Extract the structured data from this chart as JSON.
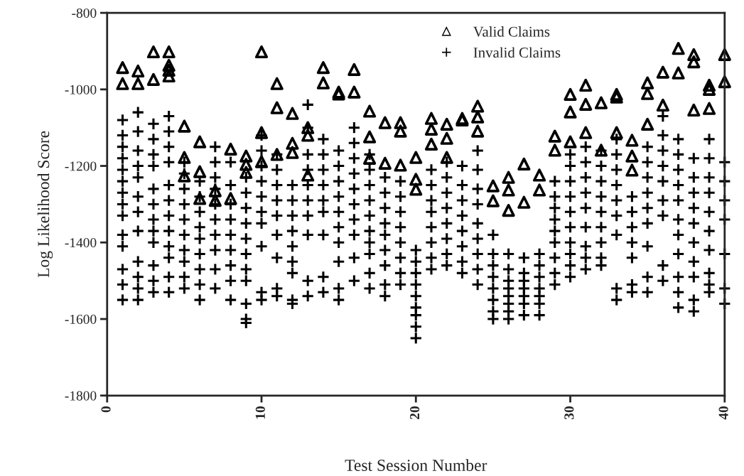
{
  "chart_data": {
    "type": "scatter",
    "xlabel": "Test Session Number",
    "ylabel": "Log Likelihood Score",
    "xlim": [
      0,
      40
    ],
    "xticks": [
      0,
      10,
      20,
      30,
      40
    ],
    "ylim": [
      -1800,
      -800
    ],
    "yticks": [
      -1800,
      -1600,
      -1400,
      -1200,
      -1000,
      -800
    ],
    "legend": "top",
    "grid": false,
    "series": [
      {
        "name": "Valid Claims",
        "color": "#000000",
        "marker": "triangle",
        "x": [
          1,
          1,
          2,
          2,
          3,
          3,
          4,
          4,
          4,
          4,
          5,
          5,
          5,
          6,
          6,
          6,
          7,
          7,
          8,
          8,
          9,
          9,
          9,
          10,
          10,
          10,
          11,
          11,
          11,
          12,
          12,
          12,
          13,
          13,
          13,
          14,
          14,
          15,
          15,
          16,
          16,
          17,
          17,
          17,
          18,
          18,
          19,
          19,
          19,
          20,
          20,
          20,
          21,
          21,
          21,
          22,
          22,
          22,
          23,
          23,
          24,
          24,
          24,
          25,
          25,
          26,
          26,
          26,
          27,
          27,
          28,
          28,
          29,
          29,
          30,
          30,
          30,
          31,
          31,
          31,
          32,
          32,
          33,
          33,
          33,
          34,
          34,
          34,
          35,
          35,
          35,
          36,
          36,
          37,
          37,
          38,
          38,
          38,
          39,
          39,
          39,
          40,
          40
        ],
        "values": [
          -943,
          -985,
          -952,
          -985,
          -902,
          -974,
          -902,
          -937,
          -950,
          -965,
          -1096,
          -1178,
          -1226,
          -1137,
          -1215,
          -1285,
          -1265,
          -1290,
          -1156,
          -1285,
          -1174,
          -1196,
          -1217,
          -902,
          -1113,
          -1189,
          -985,
          -1048,
          -1170,
          -1063,
          -1141,
          -1165,
          -1100,
          -1120,
          -1224,
          -943,
          -983,
          -1007,
          -1012,
          -948,
          -1007,
          -1057,
          -1124,
          -1180,
          -1087,
          -1193,
          -1087,
          -1109,
          -1198,
          -1178,
          -1235,
          -1261,
          -1076,
          -1104,
          -1143,
          -1091,
          -1128,
          -1178,
          -1076,
          -1080,
          -1044,
          -1072,
          -1109,
          -1252,
          -1291,
          -1230,
          -1263,
          -1316,
          -1195,
          -1295,
          -1224,
          -1263,
          -1122,
          -1159,
          -1013,
          -1059,
          -1137,
          -989,
          -1039,
          -1113,
          -1035,
          -1159,
          -1013,
          -1020,
          -1113,
          -1133,
          -1174,
          -1211,
          -983,
          -1011,
          -1091,
          -955,
          -1041,
          -893,
          -957,
          -909,
          -928,
          -1054,
          -989,
          -1000,
          -1050,
          -909,
          -980
        ]
      },
      {
        "name": "Invalid Claims",
        "color": "#000000",
        "marker": "cross",
        "x": [
          1,
          1,
          1,
          1,
          1,
          1,
          1,
          1,
          1,
          1,
          1,
          1,
          1,
          1,
          2,
          2,
          2,
          2,
          2,
          2,
          2,
          2,
          2,
          2,
          2,
          2,
          3,
          3,
          3,
          3,
          3,
          3,
          3,
          3,
          3,
          3,
          3,
          3,
          4,
          4,
          4,
          4,
          4,
          4,
          4,
          4,
          4,
          4,
          4,
          4,
          5,
          5,
          5,
          5,
          5,
          5,
          5,
          5,
          5,
          5,
          6,
          6,
          6,
          6,
          6,
          6,
          6,
          6,
          6,
          7,
          7,
          7,
          7,
          7,
          7,
          7,
          7,
          7,
          7,
          8,
          8,
          8,
          8,
          8,
          8,
          8,
          8,
          8,
          9,
          9,
          9,
          9,
          9,
          9,
          9,
          9,
          9,
          9,
          9,
          10,
          10,
          10,
          10,
          10,
          10,
          10,
          10,
          10,
          10,
          11,
          11,
          11,
          11,
          11,
          11,
          11,
          11,
          11,
          12,
          12,
          12,
          12,
          12,
          12,
          12,
          12,
          12,
          13,
          13,
          13,
          13,
          13,
          13,
          13,
          13,
          13,
          13,
          14,
          14,
          14,
          14,
          14,
          14,
          14,
          14,
          14,
          15,
          15,
          15,
          15,
          15,
          15,
          15,
          15,
          15,
          15,
          16,
          16,
          16,
          16,
          16,
          16,
          16,
          16,
          16,
          16,
          17,
          17,
          17,
          17,
          17,
          17,
          17,
          17,
          17,
          17,
          18,
          18,
          18,
          18,
          18,
          18,
          18,
          18,
          18,
          19,
          19,
          19,
          19,
          19,
          19,
          19,
          19,
          20,
          20,
          20,
          20,
          20,
          20,
          20,
          20,
          20,
          21,
          21,
          21,
          21,
          21,
          21,
          21,
          21,
          22,
          22,
          22,
          22,
          22,
          22,
          22,
          22,
          23,
          23,
          23,
          23,
          23,
          23,
          23,
          23,
          24,
          24,
          24,
          24,
          24,
          24,
          24,
          24,
          24,
          25,
          25,
          25,
          25,
          25,
          25,
          25,
          25,
          26,
          26,
          26,
          26,
          26,
          26,
          26,
          26,
          27,
          27,
          27,
          27,
          27,
          27,
          27,
          28,
          28,
          28,
          28,
          28,
          28,
          28,
          29,
          29,
          29,
          29,
          29,
          29,
          29,
          29,
          29,
          30,
          30,
          30,
          30,
          30,
          30,
          30,
          30,
          30,
          30,
          31,
          31,
          31,
          31,
          31,
          31,
          31,
          31,
          31,
          32,
          32,
          32,
          32,
          32,
          32,
          32,
          32,
          32,
          33,
          33,
          33,
          33,
          33,
          33,
          33,
          33,
          33,
          34,
          34,
          34,
          34,
          34,
          34,
          34,
          35,
          35,
          35,
          35,
          35,
          35,
          35,
          35,
          35,
          36,
          36,
          36,
          36,
          36,
          36,
          36,
          36,
          36,
          37,
          37,
          37,
          37,
          37,
          37,
          37,
          37,
          37,
          37,
          37,
          38,
          38,
          38,
          38,
          38,
          38,
          38,
          38,
          38,
          38,
          39,
          39,
          39,
          39,
          39,
          39,
          39,
          39,
          39,
          39,
          40,
          40,
          40,
          40,
          40,
          40,
          40
        ],
        "values": [
          -1080,
          -1120,
          -1150,
          -1180,
          -1210,
          -1240,
          -1270,
          -1300,
          -1330,
          -1380,
          -1410,
          -1470,
          -1510,
          -1550,
          -1060,
          -1110,
          -1160,
          -1200,
          -1230,
          -1280,
          -1320,
          -1370,
          -1450,
          -1490,
          -1520,
          -1550,
          -1090,
          -1130,
          -1170,
          -1200,
          -1260,
          -1300,
          -1340,
          -1370,
          -1400,
          -1460,
          -1500,
          -1530,
          -1070,
          -1110,
          -1150,
          -1190,
          -1250,
          -1290,
          -1330,
          -1370,
          -1410,
          -1440,
          -1490,
          -1530,
          -1190,
          -1220,
          -1260,
          -1300,
          -1340,
          -1380,
          -1420,
          -1450,
          -1490,
          -1520,
          -1240,
          -1280,
          -1320,
          -1360,
          -1390,
          -1430,
          -1470,
          -1510,
          -1550,
          -1150,
          -1190,
          -1230,
          -1260,
          -1300,
          -1340,
          -1380,
          -1420,
          -1470,
          -1520,
          -1190,
          -1250,
          -1300,
          -1340,
          -1380,
          -1420,
          -1460,
          -1500,
          -1550,
          -1230,
          -1270,
          -1310,
          -1350,
          -1390,
          -1430,
          -1470,
          -1500,
          -1560,
          -1600,
          -1610,
          -1120,
          -1160,
          -1200,
          -1240,
          -1280,
          -1320,
          -1350,
          -1410,
          -1530,
          -1550,
          -1170,
          -1210,
          -1250,
          -1290,
          -1330,
          -1380,
          -1440,
          -1520,
          -1540,
          -1250,
          -1290,
          -1330,
          -1370,
          -1410,
          -1450,
          -1480,
          -1550,
          -1560,
          -1040,
          -1100,
          -1170,
          -1210,
          -1250,
          -1290,
          -1330,
          -1380,
          -1500,
          -1540,
          -1130,
          -1170,
          -1210,
          -1250,
          -1290,
          -1320,
          -1380,
          -1490,
          -1530,
          -1160,
          -1200,
          -1240,
          -1280,
          -1320,
          -1360,
          -1400,
          -1450,
          -1520,
          -1550,
          -1100,
          -1140,
          -1180,
          -1220,
          -1260,
          -1300,
          -1340,
          -1380,
          -1440,
          -1500,
          -1170,
          -1210,
          -1250,
          -1290,
          -1330,
          -1370,
          -1400,
          -1430,
          -1480,
          -1520,
          -1230,
          -1270,
          -1310,
          -1350,
          -1380,
          -1420,
          -1460,
          -1510,
          -1540,
          -1240,
          -1280,
          -1320,
          -1360,
          -1400,
          -1440,
          -1480,
          -1510,
          -1420,
          -1450,
          -1480,
          -1510,
          -1540,
          -1570,
          -1590,
          -1620,
          -1650,
          -1210,
          -1250,
          -1290,
          -1320,
          -1360,
          -1400,
          -1440,
          -1470,
          -1190,
          -1230,
          -1270,
          -1310,
          -1350,
          -1390,
          -1430,
          -1460,
          -1200,
          -1250,
          -1290,
          -1330,
          -1370,
          -1410,
          -1450,
          -1480,
          -1160,
          -1210,
          -1260,
          -1300,
          -1350,
          -1390,
          -1430,
          -1470,
          -1510,
          -1380,
          -1430,
          -1460,
          -1490,
          -1520,
          -1550,
          -1580,
          -1600,
          -1430,
          -1470,
          -1500,
          -1520,
          -1540,
          -1560,
          -1580,
          -1600,
          -1440,
          -1480,
          -1500,
          -1520,
          -1540,
          -1560,
          -1590,
          -1430,
          -1460,
          -1490,
          -1520,
          -1540,
          -1560,
          -1590,
          -1240,
          -1280,
          -1310,
          -1340,
          -1370,
          -1400,
          -1440,
          -1480,
          -1510,
          -1170,
          -1200,
          -1240,
          -1280,
          -1320,
          -1360,
          -1400,
          -1430,
          -1460,
          -1490,
          -1150,
          -1190,
          -1230,
          -1270,
          -1310,
          -1360,
          -1410,
          -1440,
          -1470,
          -1160,
          -1200,
          -1240,
          -1280,
          -1320,
          -1360,
          -1400,
          -1440,
          -1460,
          -1130,
          -1170,
          -1210,
          -1250,
          -1290,
          -1330,
          -1380,
          -1520,
          -1550,
          -1280,
          -1320,
          -1360,
          -1400,
          -1440,
          -1510,
          -1530,
          -1150,
          -1190,
          -1230,
          -1270,
          -1310,
          -1350,
          -1410,
          -1490,
          -1530,
          -1070,
          -1120,
          -1160,
          -1200,
          -1240,
          -1290,
          -1330,
          -1460,
          -1500,
          -1130,
          -1170,
          -1210,
          -1250,
          -1290,
          -1340,
          -1380,
          -1430,
          -1490,
          -1530,
          -1570,
          -1180,
          -1230,
          -1270,
          -1310,
          -1350,
          -1400,
          -1450,
          -1490,
          -1550,
          -1580,
          -1130,
          -1180,
          -1230,
          -1270,
          -1320,
          -1370,
          -1420,
          -1480,
          -1510,
          -1530,
          -1190,
          -1240,
          -1290,
          -1340,
          -1430,
          -1520,
          -1560
        ]
      }
    ]
  }
}
